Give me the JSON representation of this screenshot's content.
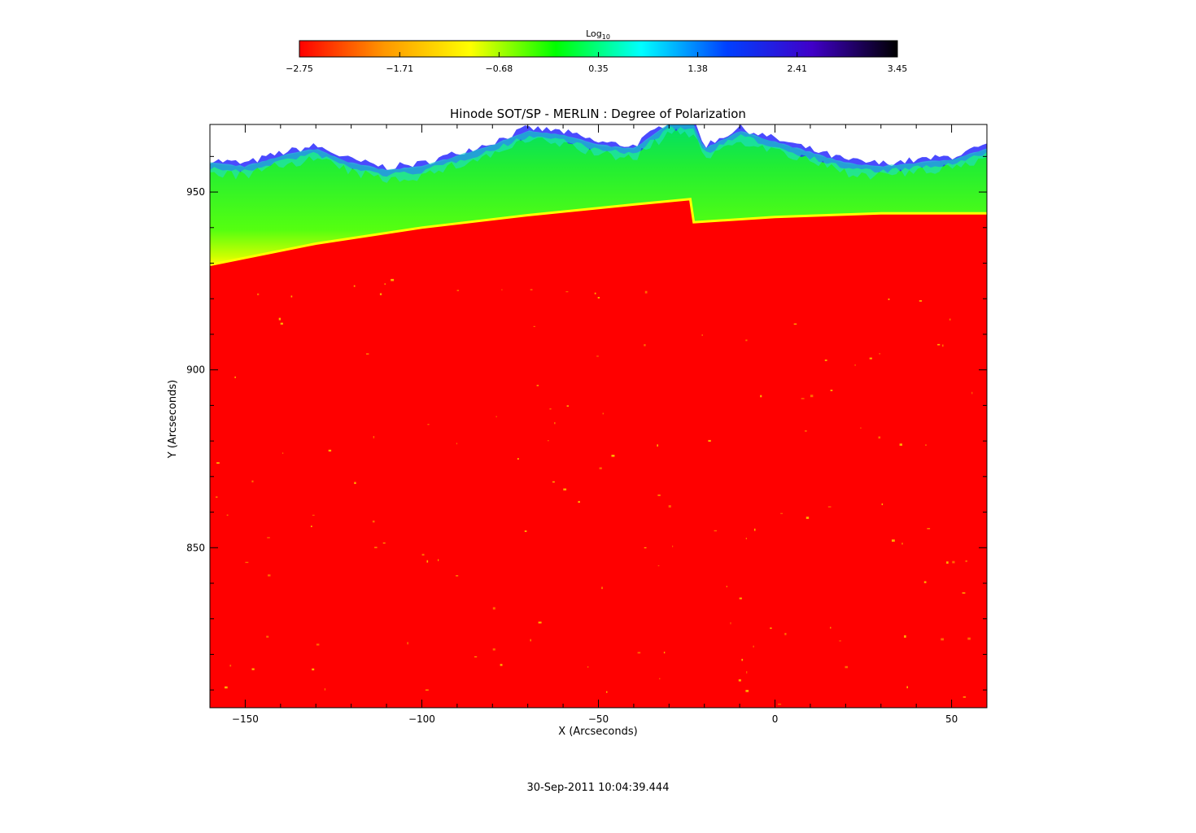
{
  "chart_data": {
    "type": "heatmap",
    "title": "Hinode SOT/SP - MERLIN : Degree of Polarization",
    "xlabel": "X (Arcseconds)",
    "ylabel": "Y (Arcseconds)",
    "xlim": [
      -160,
      60
    ],
    "ylim": [
      805,
      969
    ],
    "x_ticks": [
      -150,
      -100,
      -50,
      0,
      50
    ],
    "x_tick_labels": [
      "−150",
      "−100",
      "−50",
      "0",
      "50"
    ],
    "y_ticks": [
      850,
      900,
      950
    ],
    "y_tick_labels": [
      "850",
      "900",
      "950"
    ],
    "colorbar": {
      "label": "Log",
      "label_subscript": "10",
      "range": [
        -2.75,
        3.45
      ],
      "tick_values": [
        -2.75,
        -1.71,
        -0.68,
        0.35,
        1.38,
        2.41,
        3.45
      ],
      "tick_labels": [
        "−2.75",
        "−1.71",
        "−0.68",
        "0.35",
        "1.38",
        "2.41",
        "3.45"
      ],
      "colormap": [
        "#ff0000",
        "#ff9800",
        "#ffff00",
        "#00ff00",
        "#00ffff",
        "#0040ff",
        "#4000c8",
        "#000000"
      ]
    },
    "limb_edge_y": [
      {
        "x": -160,
        "y": 929.5
      },
      {
        "x": -130,
        "y": 935.5
      },
      {
        "x": -100,
        "y": 940.0
      },
      {
        "x": -70,
        "y": 943.5
      },
      {
        "x": -40,
        "y": 946.5
      },
      {
        "x": -24,
        "y": 948.0
      },
      {
        "x": -23,
        "y": 941.5
      },
      {
        "x": 0,
        "y": 943.0
      },
      {
        "x": 30,
        "y": 944.0
      },
      {
        "x": 60,
        "y": 944.0
      }
    ],
    "off_limb_colors": {
      "disk": "#ff0000",
      "limb": "#ffff00",
      "corona_inner": "#33ee22",
      "corona_outer": "#7fff00",
      "noise_edge": "#2020ff",
      "no_data": "#ffffff"
    },
    "timestamp": "30-Sep-2011 10:04:39.444"
  }
}
